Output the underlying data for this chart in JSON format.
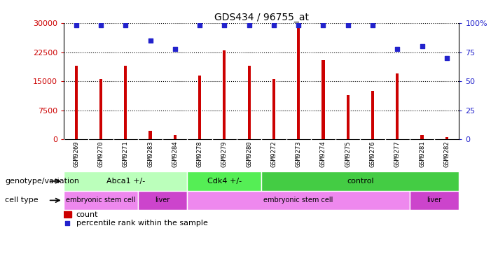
{
  "title": "GDS434 / 96755_at",
  "samples": [
    "GSM9269",
    "GSM9270",
    "GSM9271",
    "GSM9283",
    "GSM9284",
    "GSM9278",
    "GSM9279",
    "GSM9280",
    "GSM9272",
    "GSM9273",
    "GSM9274",
    "GSM9275",
    "GSM9276",
    "GSM9277",
    "GSM9281",
    "GSM9282"
  ],
  "counts": [
    19000,
    15500,
    19000,
    2200,
    1200,
    16500,
    23000,
    19000,
    15500,
    29000,
    20500,
    11500,
    12500,
    17000,
    1100,
    700
  ],
  "percentiles": [
    98,
    98,
    98,
    85,
    78,
    98,
    98,
    98,
    98,
    98,
    98,
    98,
    98,
    78,
    80,
    70
  ],
  "ylim_left": [
    0,
    30000
  ],
  "ylim_right": [
    0,
    100
  ],
  "yticks_left": [
    0,
    7500,
    15000,
    22500,
    30000
  ],
  "yticks_right": [
    0,
    25,
    50,
    75,
    100
  ],
  "bar_color": "#cc0000",
  "dot_color": "#2222cc",
  "bg_color": "#ffffff",
  "plot_bg_color": "#ffffff",
  "xlabel_bg_color": "#d0d0d0",
  "genotype_groups": [
    {
      "label": "Abca1 +/-",
      "start": 0,
      "end": 5,
      "color": "#bbffbb"
    },
    {
      "label": "Cdk4 +/-",
      "start": 5,
      "end": 8,
      "color": "#55ee55"
    },
    {
      "label": "control",
      "start": 8,
      "end": 16,
      "color": "#44cc44"
    }
  ],
  "celltype_groups": [
    {
      "label": "embryonic stem cell",
      "start": 0,
      "end": 3,
      "color": "#ee88ee"
    },
    {
      "label": "liver",
      "start": 3,
      "end": 5,
      "color": "#cc44cc"
    },
    {
      "label": "embryonic stem cell",
      "start": 5,
      "end": 14,
      "color": "#ee88ee"
    },
    {
      "label": "liver",
      "start": 14,
      "end": 16,
      "color": "#cc44cc"
    }
  ],
  "legend_count_label": "count",
  "legend_pct_label": "percentile rank within the sample",
  "xlabel_genotype": "genotype/variation",
  "xlabel_celltype": "cell type",
  "title_fontsize": 10,
  "bar_width": 0.12
}
